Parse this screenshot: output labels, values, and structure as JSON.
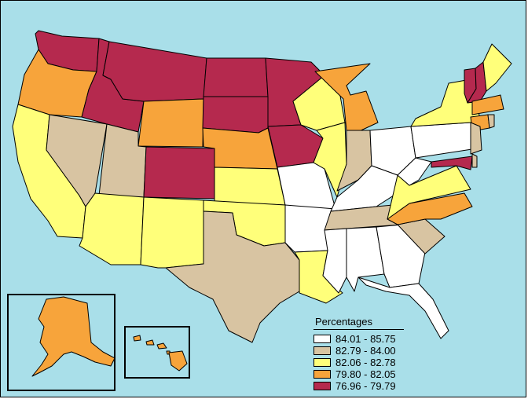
{
  "legend": {
    "title": "Percentages",
    "items": [
      {
        "label": "84.01 - 85.75",
        "color": "#ffffff"
      },
      {
        "label": "82.79 - 84.00",
        "color": "#d8c4a2"
      },
      {
        "label": "82.06 - 82.78",
        "color": "#ffff7a"
      },
      {
        "label": "79.80 - 82.05",
        "color": "#f7a43b"
      },
      {
        "label": "76.96 - 79.79",
        "color": "#b5294e"
      }
    ]
  },
  "background_color": "#a9dfe9",
  "state_classes": {
    "WA": 4,
    "OR": 3,
    "CA": 2,
    "NV": 1,
    "ID": 4,
    "MT": 4,
    "WY": 3,
    "UT": 1,
    "AZ": 2,
    "CO": 4,
    "NM": 2,
    "ND": 4,
    "SD": 4,
    "NE": 3,
    "KS": 2,
    "OK": 2,
    "TX": 1,
    "MN": 4,
    "IA": 4,
    "MO": 0,
    "AR": 0,
    "LA": 2,
    "WI": 2,
    "IL": 2,
    "MI": 3,
    "IN": 1,
    "OH": 0,
    "KY": 0,
    "TN": 1,
    "MS": 0,
    "AL": 0,
    "GA": 0,
    "FL": 0,
    "SC": 1,
    "NC": 3,
    "VA": 2,
    "WV": 0,
    "PA": 0,
    "NY": 2,
    "VT": 4,
    "NH": 4,
    "ME": 2,
    "MA": 3,
    "CT": 3,
    "RI": 1,
    "NJ": 1,
    "DE": 1,
    "MD": 4,
    "AK": 3,
    "HI": 3
  }
}
